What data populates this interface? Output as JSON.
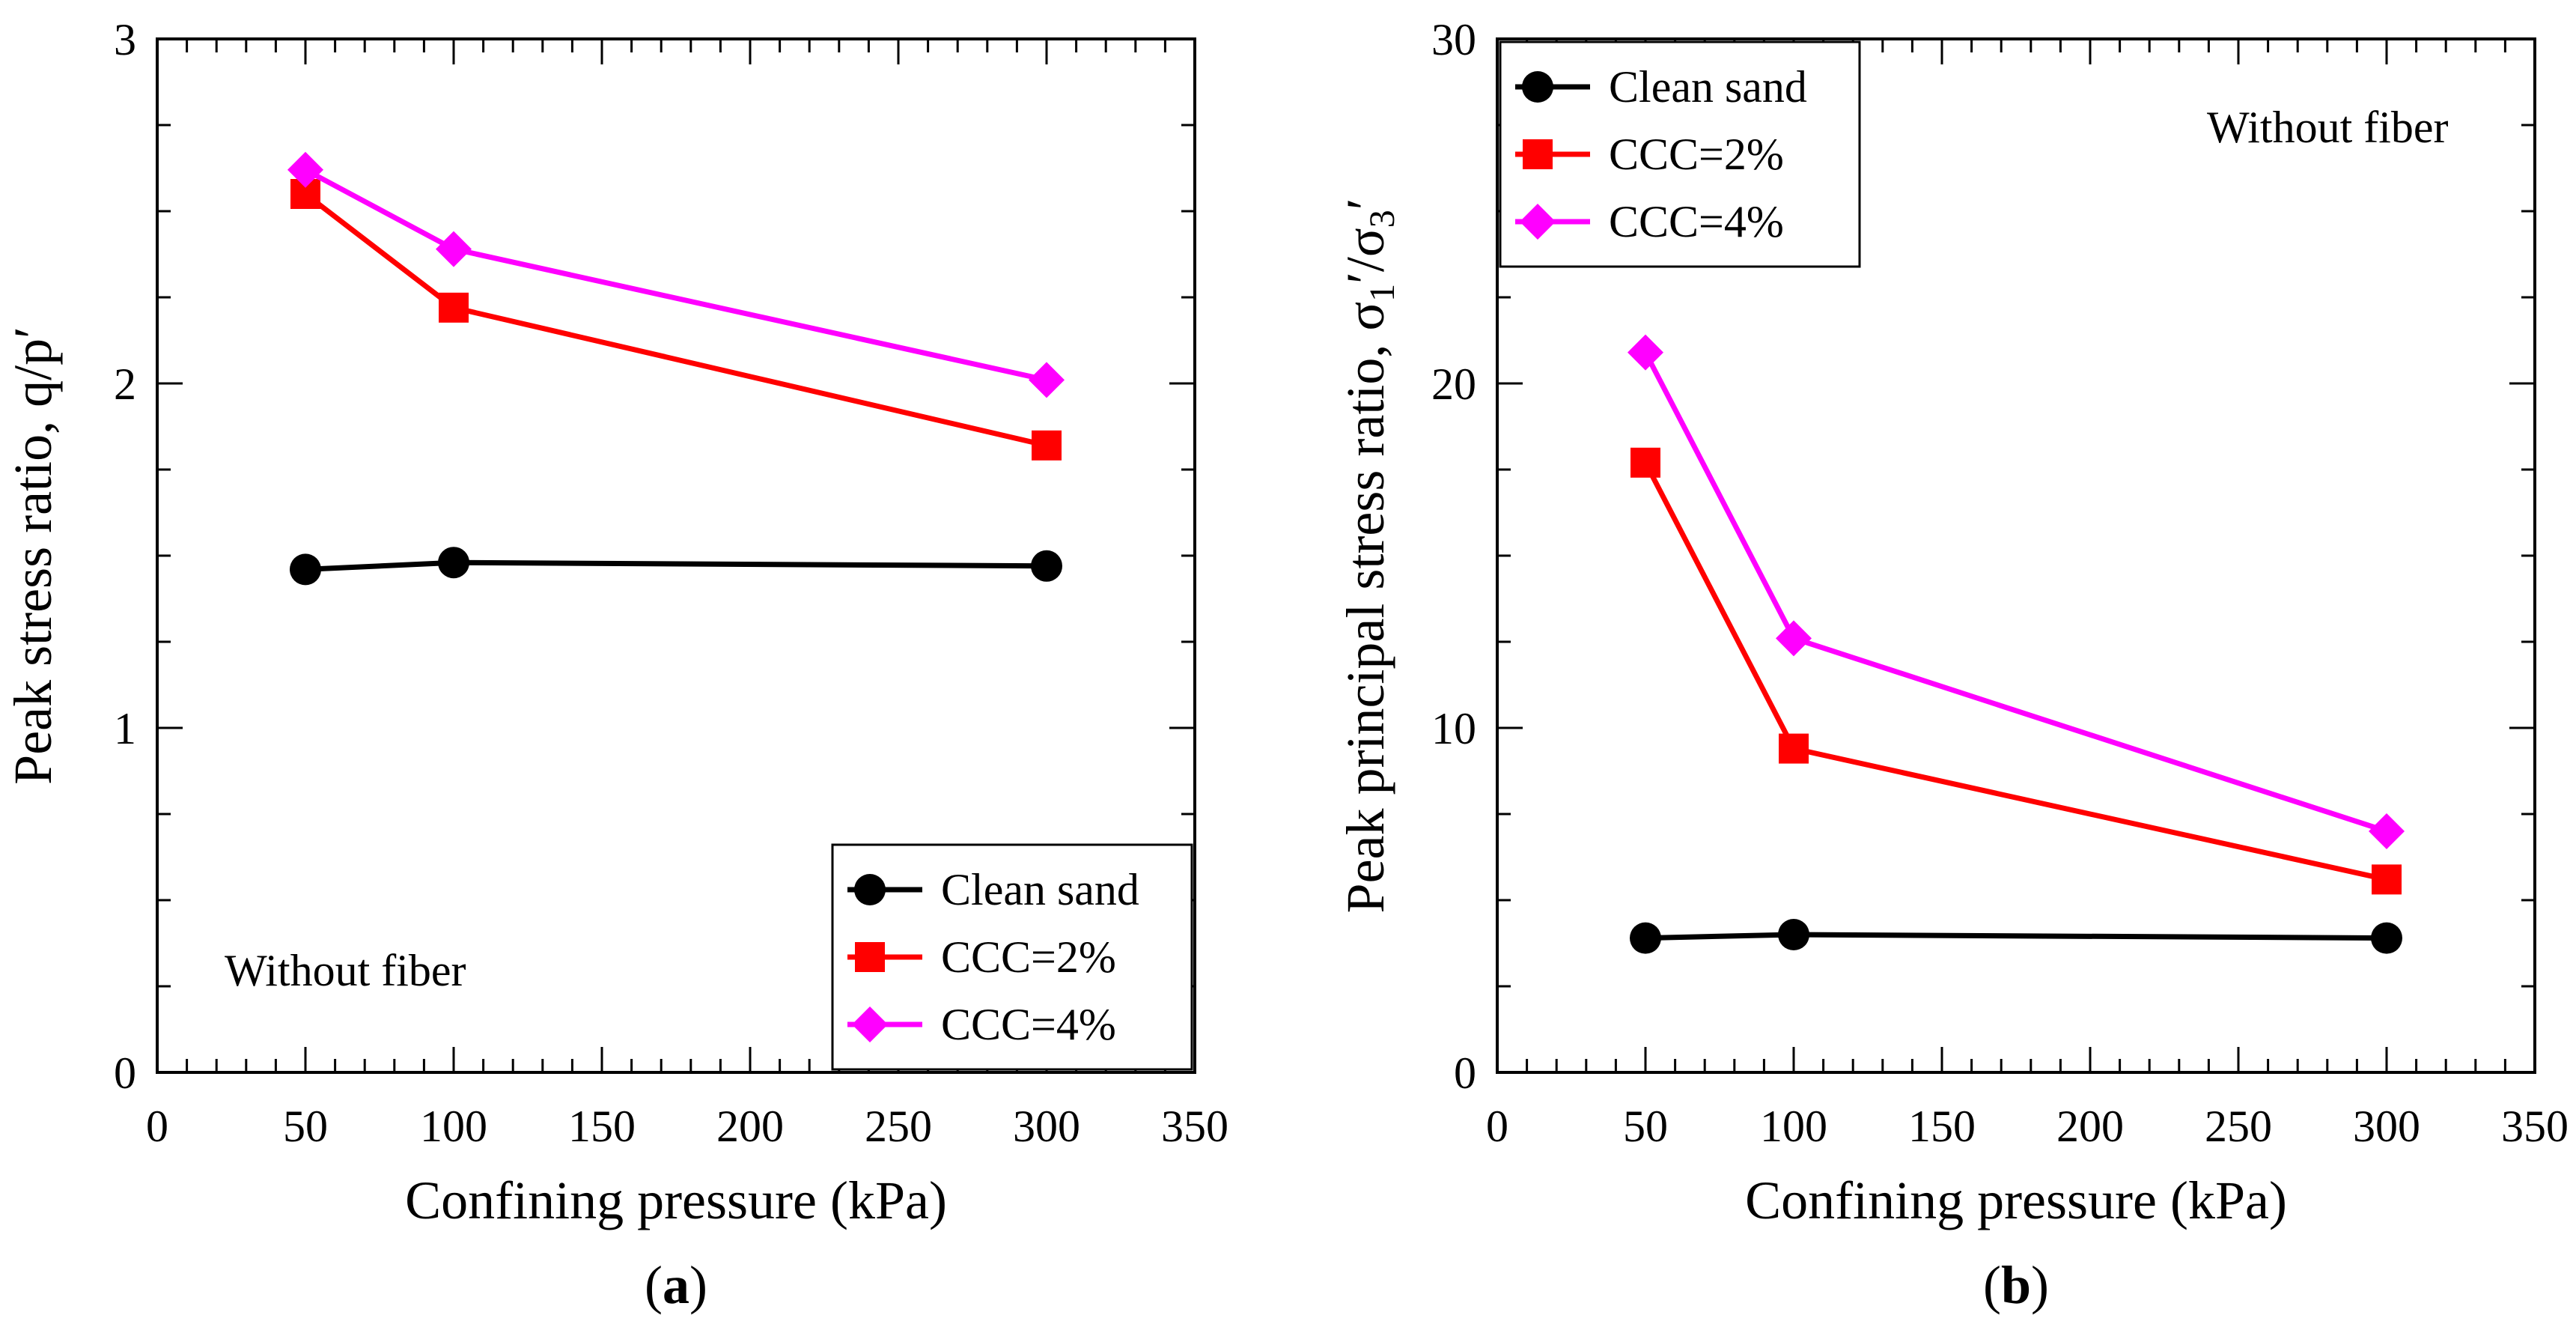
{
  "chart_data": [
    {
      "id": "a",
      "type": "line",
      "panel_label": "a",
      "xlabel": "Confining pressure (kPa)",
      "ylabel": "Peak stress ratio, q/p′",
      "xlim": [
        0,
        350
      ],
      "ylim": [
        0,
        3
      ],
      "xticks": [
        "0",
        "50",
        "100",
        "150",
        "200",
        "250",
        "300",
        "350"
      ],
      "yticks": [
        "0",
        "1",
        "2",
        "3"
      ],
      "x_minor_step": 10,
      "y_minor_step": 0.25,
      "annotation": "Without fiber",
      "legend_position": "bottom-right",
      "grid": false,
      "x": [
        50,
        100,
        300
      ],
      "series": [
        {
          "name": "Clean sand",
          "color": "#000000",
          "marker": "circle",
          "values": [
            1.46,
            1.48,
            1.47
          ]
        },
        {
          "name": "CCC=2%",
          "color": "#ff0000",
          "marker": "square",
          "values": [
            2.55,
            2.22,
            1.82
          ]
        },
        {
          "name": "CCC=4%",
          "color": "#ff00ff",
          "marker": "diamond",
          "values": [
            2.62,
            2.39,
            2.01
          ]
        }
      ]
    },
    {
      "id": "b",
      "type": "line",
      "panel_label": "b",
      "xlabel": "Confining pressure (kPa)",
      "ylabel_main": "Peak principal stress ratio, σ",
      "ylabel_sub1": "1",
      "ylabel_mid": "′/σ",
      "ylabel_sub2": "3",
      "ylabel_end": "′",
      "xlim": [
        0,
        350
      ],
      "ylim": [
        0,
        30
      ],
      "xticks": [
        "0",
        "50",
        "100",
        "150",
        "200",
        "250",
        "300",
        "350"
      ],
      "yticks": [
        "0",
        "10",
        "20",
        "30"
      ],
      "x_minor_step": 10,
      "y_minor_step": 2.5,
      "annotation": "Without fiber",
      "legend_position": "top-left",
      "grid": false,
      "x": [
        50,
        100,
        300
      ],
      "series": [
        {
          "name": "Clean sand",
          "color": "#000000",
          "marker": "circle",
          "values": [
            3.9,
            4.0,
            3.9
          ]
        },
        {
          "name": "CCC=2%",
          "color": "#ff0000",
          "marker": "square",
          "values": [
            17.7,
            9.4,
            5.6
          ]
        },
        {
          "name": "CCC=4%",
          "color": "#ff00ff",
          "marker": "diamond",
          "values": [
            20.9,
            12.6,
            7.0
          ]
        }
      ]
    }
  ]
}
